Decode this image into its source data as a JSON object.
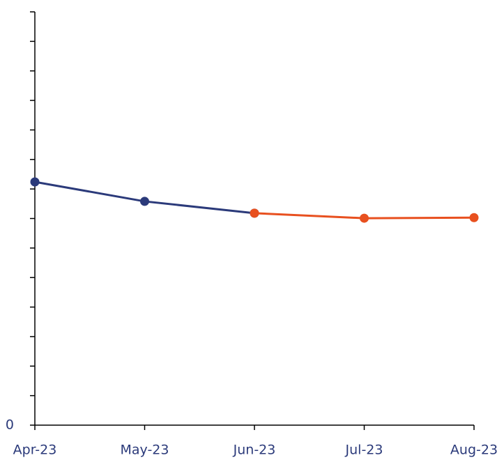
{
  "chart_data": {
    "type": "line",
    "categories": [
      "Apr-23",
      "May-23",
      "Jun-23",
      "Jul-23",
      "Aug-23"
    ],
    "series": [
      {
        "color": "#2b3a7a",
        "values": [
          8.24,
          7.58,
          7.18,
          null,
          null
        ]
      },
      {
        "color": "#e8501f",
        "values": [
          null,
          null,
          7.18,
          7.01,
          7.03
        ]
      }
    ],
    "ylim": [
      0,
      14
    ],
    "yticks": [
      0
    ],
    "yminorticks": [
      1,
      2,
      3,
      4,
      5,
      6,
      7,
      8,
      9,
      10,
      11,
      12,
      13,
      14
    ]
  }
}
